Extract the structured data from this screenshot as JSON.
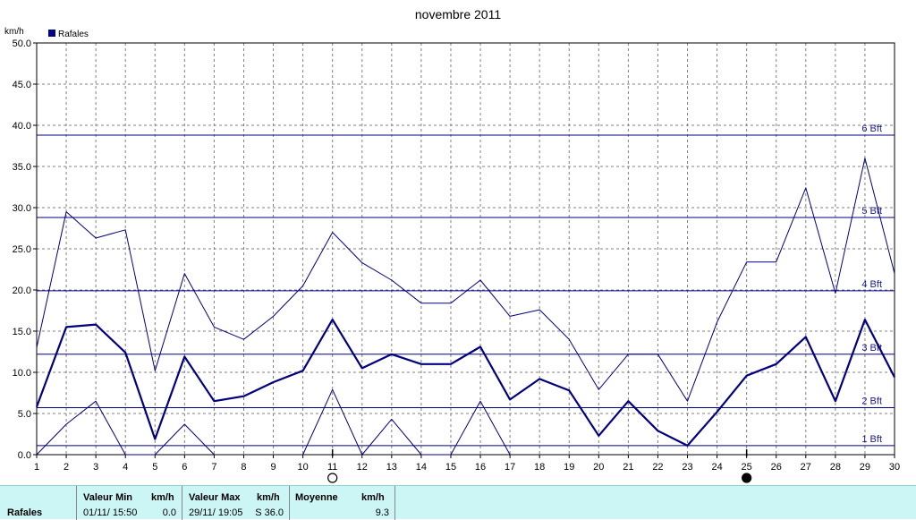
{
  "chart_data": {
    "type": "line",
    "title": "novembre 2011",
    "ylabel": "km/h",
    "ylim": [
      0,
      50
    ],
    "yticks": [
      "0.0",
      "5.0",
      "10.0",
      "15.0",
      "20.0",
      "25.0",
      "30.0",
      "35.0",
      "40.0",
      "45.0",
      "50.0"
    ],
    "x": [
      1,
      2,
      3,
      4,
      5,
      6,
      7,
      8,
      9,
      10,
      11,
      12,
      13,
      14,
      15,
      16,
      17,
      18,
      19,
      20,
      21,
      22,
      23,
      24,
      25,
      26,
      27,
      28,
      29,
      30
    ],
    "legend": [
      {
        "label": "Rafales",
        "color": "#000080"
      }
    ],
    "grid": true,
    "series": [
      {
        "role": "max",
        "color": "#000080",
        "values": [
          13.0,
          29.5,
          26.3,
          27.3,
          10.2,
          22.0,
          15.5,
          14.0,
          16.8,
          20.5,
          27.0,
          23.3,
          21.2,
          18.4,
          18.4,
          21.2,
          16.8,
          17.6,
          14.0,
          7.9,
          12.2,
          12.2,
          6.5,
          16.1,
          23.4,
          23.4,
          32.4,
          19.6,
          36.0,
          22.0
        ]
      },
      {
        "role": "mean",
        "color": "#000080",
        "values": [
          5.8,
          15.5,
          15.8,
          12.4,
          1.9,
          11.9,
          6.5,
          7.1,
          8.8,
          10.2,
          16.4,
          10.5,
          12.2,
          11.0,
          11.0,
          13.1,
          6.7,
          9.2,
          7.8,
          2.3,
          6.5,
          2.9,
          1.1,
          5.2,
          9.6,
          11.0,
          14.3,
          6.5,
          16.4,
          9.4
        ]
      },
      {
        "role": "min",
        "color": "#000080",
        "values": [
          0.0,
          3.7,
          6.5,
          0.0,
          0.0,
          3.7,
          0.0,
          null,
          null,
          0.0,
          7.9,
          0.0,
          4.3,
          0.0,
          0.0,
          6.5,
          0.0,
          null,
          null,
          null,
          null,
          null,
          null,
          null,
          null,
          null,
          null,
          null,
          null,
          null
        ]
      }
    ],
    "beaufort": [
      {
        "label": "1 Bft",
        "value": 1.1
      },
      {
        "label": "2 Bft",
        "value": 5.7
      },
      {
        "label": "3 Bft",
        "value": 12.2
      },
      {
        "label": "4 Bft",
        "value": 19.9
      },
      {
        "label": "5 Bft",
        "value": 28.8
      },
      {
        "label": "6 Bft",
        "value": 38.8
      }
    ],
    "moon_phases": [
      {
        "day": 11,
        "phase": "full"
      },
      {
        "day": 25,
        "phase": "new"
      }
    ]
  },
  "stats": {
    "row_label": "Rafales",
    "min_header": "Valeur Min",
    "min_unit": "km/h",
    "min_date": "01/11/  15:50",
    "min_value": "0.0",
    "max_header": "Valeur Max",
    "max_unit": "km/h",
    "max_date": "29/11/  19:05",
    "max_value": "S 36.0",
    "mean_header": "Moyenne",
    "mean_unit": "km/h",
    "mean_value": "9.3"
  }
}
